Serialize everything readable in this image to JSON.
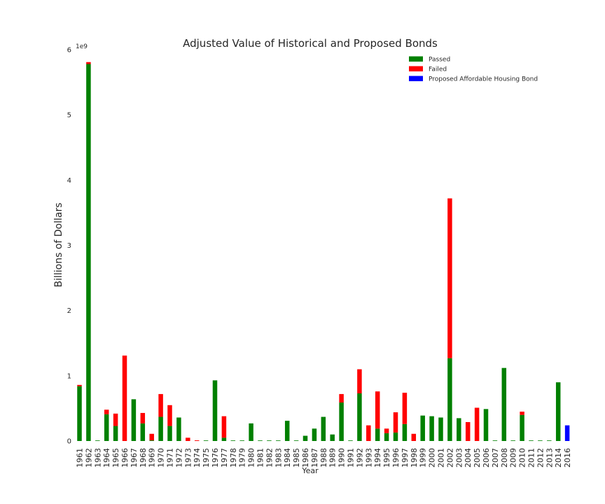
{
  "chart_data": {
    "type": "bar",
    "stacked": true,
    "title": "Adjusted Value of Historical and Proposed Bonds",
    "xlabel": "Year",
    "ylabel": "Billions of Dollars",
    "ylim": [
      0,
      6000000000
    ],
    "yticks": [
      0,
      1,
      2,
      3,
      4,
      5,
      6
    ],
    "y_offset_label": "1e9",
    "legend_position": "top-right",
    "categories": [
      "1961",
      "1962",
      "1963",
      "1964",
      "1965",
      "1966",
      "1967",
      "1968",
      "1969",
      "1970",
      "1971",
      "1972",
      "1973",
      "1974",
      "1975",
      "1976",
      "1977",
      "1978",
      "1979",
      "1980",
      "1981",
      "1982",
      "1983",
      "1984",
      "1985",
      "1986",
      "1987",
      "1988",
      "1989",
      "1990",
      "1991",
      "1992",
      "1993",
      "1994",
      "1995",
      "1996",
      "1997",
      "1998",
      "1999",
      "2000",
      "2001",
      "2002",
      "2003",
      "2004",
      "2005",
      "2006",
      "2007",
      "2008",
      "2009",
      "2010",
      "2011",
      "2012",
      "2013",
      "2014",
      "2016"
    ],
    "series": [
      {
        "name": "Passed",
        "color": "#008000",
        "values": [
          0.84,
          5.78,
          0,
          0.41,
          0.23,
          0,
          0.64,
          0.27,
          0.01,
          0.37,
          0.23,
          0.36,
          0,
          0,
          0,
          0.93,
          0.05,
          0,
          0,
          0.27,
          0,
          0,
          0,
          0.31,
          0,
          0.08,
          0.19,
          0.37,
          0.1,
          0.59,
          0,
          0.73,
          0,
          0.19,
          0.12,
          0.13,
          0.26,
          0,
          0.39,
          0.38,
          0.36,
          1.27,
          0.35,
          0,
          0,
          0.49,
          0,
          1.12,
          0,
          0.4,
          0,
          0,
          0,
          0.9,
          0
        ]
      },
      {
        "name": "Failed",
        "color": "#ff0000",
        "values": [
          0.02,
          0.03,
          0,
          0.07,
          0.19,
          1.31,
          0,
          0.16,
          0.1,
          0.35,
          0.32,
          0,
          0.05,
          0.01,
          0,
          0,
          0.33,
          0,
          0,
          0,
          0,
          0,
          0,
          0,
          0,
          0,
          0,
          0,
          0,
          0.13,
          0,
          0.37,
          0.24,
          0.57,
          0.07,
          0.31,
          0.48,
          0.11,
          0,
          0,
          0,
          2.45,
          0,
          0.29,
          0.51,
          0,
          0,
          0,
          0,
          0.05,
          0,
          0,
          0,
          0,
          0
        ]
      },
      {
        "name": "Proposed Affordable Housing Bond",
        "color": "#0000ff",
        "values": [
          0,
          0,
          0,
          0,
          0,
          0,
          0,
          0,
          0,
          0,
          0,
          0,
          0,
          0,
          0,
          0,
          0,
          0,
          0,
          0,
          0,
          0,
          0,
          0,
          0,
          0,
          0,
          0,
          0,
          0,
          0,
          0,
          0,
          0,
          0,
          0,
          0,
          0,
          0,
          0,
          0,
          0,
          0,
          0,
          0,
          0,
          0,
          0,
          0,
          0,
          0,
          0,
          0,
          0,
          0.24
        ]
      }
    ],
    "value_unit": "billions"
  }
}
